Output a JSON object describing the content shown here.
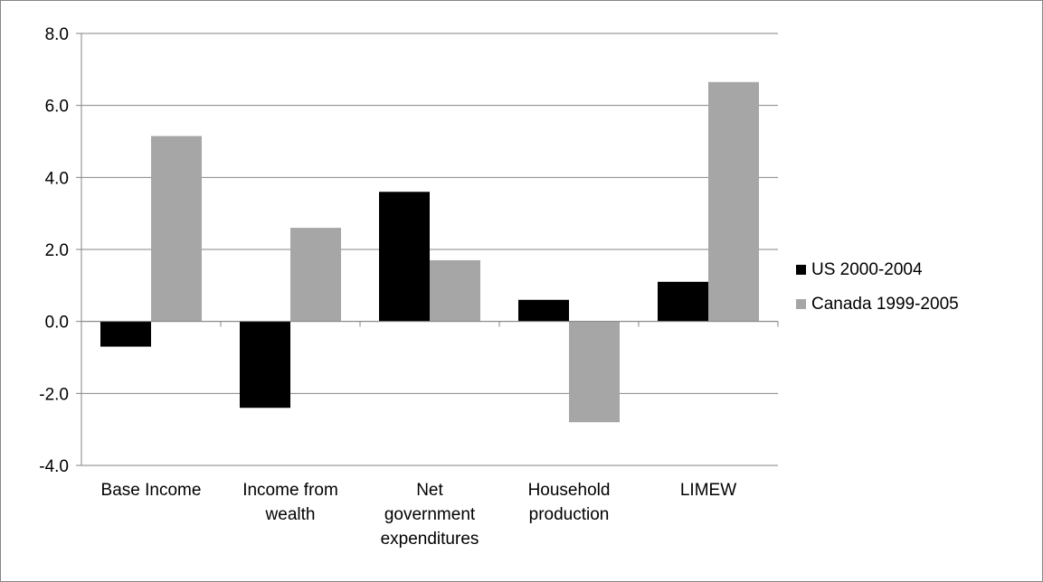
{
  "chart_data": {
    "type": "bar",
    "title": "",
    "xlabel": "",
    "ylabel": "",
    "ylim": [
      -4.0,
      8.0
    ],
    "yticks": [
      "8.0",
      "6.0",
      "4.0",
      "2.0",
      "0.0",
      "-2.0",
      "-4.0"
    ],
    "ytick_values": [
      8,
      6,
      4,
      2,
      0,
      -2,
      -4
    ],
    "grid": true,
    "legend_position": "right",
    "categories": [
      [
        "Base Income"
      ],
      [
        "Income from",
        "wealth"
      ],
      [
        "Net",
        "government",
        "expenditures"
      ],
      [
        "Household",
        "production"
      ],
      [
        "LIMEW"
      ]
    ],
    "series": [
      {
        "name": "US 2000-2004",
        "color": "#000000",
        "values": [
          -0.7,
          -2.4,
          3.6,
          0.6,
          1.1
        ]
      },
      {
        "name": "Canada 1999-2005",
        "color": "#a6a6a6",
        "values": [
          5.15,
          2.6,
          1.7,
          -2.8,
          6.65
        ]
      }
    ]
  }
}
